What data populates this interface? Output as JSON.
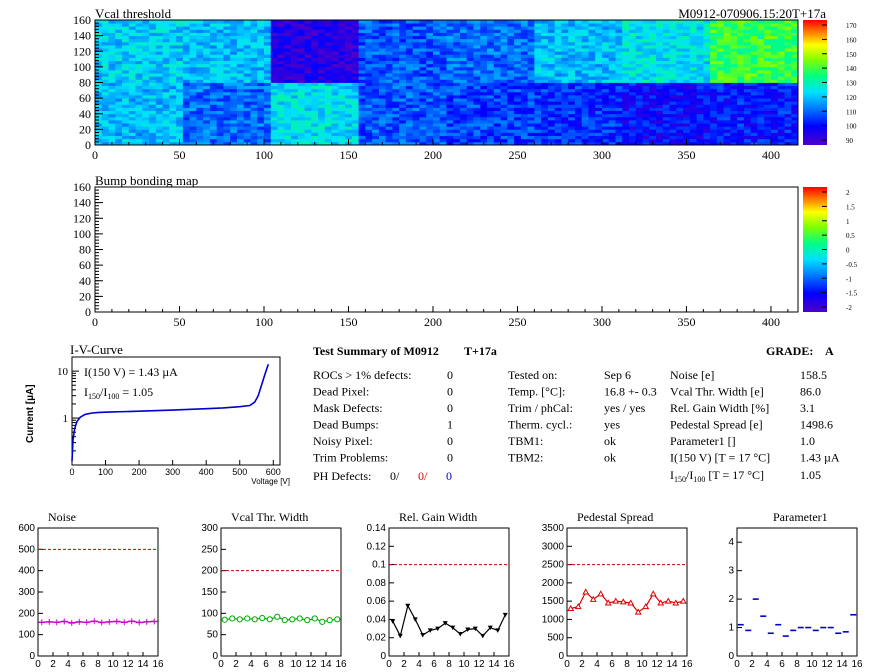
{
  "panels": {
    "vcal": {
      "title": "Vcal threshold",
      "module_id": "M0912-070906.15:20T+17a",
      "y_ticks": [
        "0",
        "20",
        "40",
        "60",
        "80",
        "100",
        "120",
        "140",
        "160"
      ],
      "x_ticks": [
        "0",
        "50",
        "100",
        "150",
        "200",
        "250",
        "300",
        "350",
        "400"
      ],
      "palette_ticks": [
        "90",
        "100",
        "110",
        "120",
        "130",
        "140",
        "150",
        "160",
        "170"
      ]
    },
    "bump": {
      "title": "Bump bonding map",
      "y_ticks": [
        "0",
        "20",
        "40",
        "60",
        "80",
        "100",
        "120",
        "140",
        "160"
      ],
      "x_ticks": [
        "0",
        "50",
        "100",
        "150",
        "200",
        "250",
        "300",
        "350",
        "400"
      ],
      "palette_ticks": [
        "-2",
        "-1.5",
        "-1",
        "-0.5",
        "0",
        "0.5",
        "1",
        "1.5",
        "2"
      ]
    }
  },
  "iv": {
    "title": "I-V-Curve",
    "ylabel": "Current [µA]",
    "xlabel": "Voltage [V]",
    "x_ticks": [
      "0",
      "100",
      "200",
      "300",
      "400",
      "500",
      "600"
    ],
    "y_ticks": [
      "1",
      "10"
    ],
    "note1": "I(150 V) = 1.43 µA",
    "note2_pre": "I",
    "note2_sub1": "150",
    "note2_mid": "/I",
    "note2_sub2": "100",
    "note2_post": " =  1.05"
  },
  "summary": {
    "title": "Test Summary of M0912",
    "tag": "T+17a",
    "grade_label": "GRADE:",
    "grade": "A",
    "rows": [
      {
        "label": "ROCs > 1% defects:",
        "value": "0"
      },
      {
        "label": "Dead Pixel:",
        "value": "0"
      },
      {
        "label": "Mask Defects:",
        "value": "0"
      },
      {
        "label": "Dead Bumps:",
        "value": "1"
      },
      {
        "label": "Noisy Pixel:",
        "value": "0"
      },
      {
        "label": "Trim Problems:",
        "value": "0"
      }
    ],
    "ph_label": "PH Defects:",
    "ph_v1": "0/",
    "ph_v2": "0/",
    "ph_v3": "0",
    "mid_rows": [
      {
        "label": "Tested on:",
        "value": "Sep 6"
      },
      {
        "label": "Temp. [°C]:",
        "value": "16.8 +- 0.3"
      },
      {
        "label": "Trim / phCal:",
        "value": "yes / yes"
      },
      {
        "label": "Therm. cycl.:",
        "value": "yes"
      },
      {
        "label": "TBM1:",
        "value": "ok"
      },
      {
        "label": "TBM2:",
        "value": "ok"
      }
    ],
    "right_rows": [
      {
        "label": "Noise [e]",
        "value": "158.5"
      },
      {
        "label": "Vcal Thr. Width [e]",
        "value": "86.0"
      },
      {
        "label": "Rel. Gain Width [%]",
        "value": "3.1"
      },
      {
        "label": "Pedestal Spread [e]",
        "value": "1498.6"
      },
      {
        "label": "Parameter1 []",
        "value": "1.0"
      },
      {
        "label": "I(150 V) [T = 17 °C]",
        "value": "1.43 µA"
      }
    ],
    "ratio_pre": "I",
    "ratio_sub1": "150",
    "ratio_mid": "/I",
    "ratio_sub2": "100",
    "ratio_post": "  [T = 17 °C]",
    "ratio_value": "1.05"
  },
  "colors": {
    "noise": "#cc00cc",
    "vcal": "#00aa00",
    "gain": "#000000",
    "ped": "#dd0000",
    "par": "#0000cc",
    "limit": "#cc0000",
    "iv": "#0000cc"
  },
  "chart_data": [
    {
      "type": "heatmap",
      "title": "Vcal threshold",
      "xlim": [
        0,
        416
      ],
      "ylim": [
        0,
        160
      ],
      "zlim": [
        90,
        170
      ],
      "chip_means_bottom": [
        120,
        112,
        124,
        110,
        108,
        106,
        102,
        104
      ],
      "chip_means_top": [
        122,
        120,
        96,
        110,
        112,
        120,
        125,
        138
      ]
    },
    {
      "type": "heatmap",
      "title": "Bump bonding map",
      "xlim": [
        0,
        416
      ],
      "ylim": [
        0,
        160
      ],
      "zlim": [
        -2,
        2
      ],
      "values": []
    },
    {
      "type": "line",
      "title": "I-V-Curve",
      "xlabel": "Voltage [V]",
      "ylabel": "Current [µA]",
      "yscale": "log",
      "xlim": [
        0,
        620
      ],
      "ylim": [
        0.1,
        20
      ],
      "x": [
        0,
        3,
        8,
        15,
        25,
        40,
        60,
        80,
        120,
        200,
        300,
        400,
        450,
        500,
        530,
        545,
        555,
        565,
        575,
        585
      ],
      "y": [
        0.12,
        0.35,
        0.6,
        0.85,
        1.05,
        1.2,
        1.28,
        1.32,
        1.35,
        1.4,
        1.48,
        1.58,
        1.65,
        1.75,
        1.85,
        2.2,
        3.0,
        5.0,
        8.5,
        14.0
      ]
    },
    {
      "type": "line",
      "title": "Noise",
      "xlim": [
        0,
        16
      ],
      "ylim": [
        0,
        600
      ],
      "limit": 500,
      "x_ticks": [
        "0",
        "2",
        "4",
        "6",
        "8",
        "10",
        "12",
        "14",
        "16"
      ],
      "y_ticks": [
        "0",
        "100",
        "200",
        "300",
        "400",
        "500",
        "600"
      ],
      "values": [
        158,
        160,
        158,
        162,
        155,
        160,
        158,
        163,
        157,
        160,
        162,
        158,
        163,
        157,
        160,
        162
      ]
    },
    {
      "type": "line",
      "title": "Vcal Thr. Width",
      "xlim": [
        0,
        16
      ],
      "ylim": [
        0,
        300
      ],
      "limit": 200,
      "x_ticks": [
        "0",
        "2",
        "4",
        "6",
        "8",
        "10",
        "12",
        "14",
        "16"
      ],
      "y_ticks": [
        "0",
        "50",
        "100",
        "150",
        "200",
        "250",
        "300"
      ],
      "values": [
        85,
        88,
        86,
        88,
        86,
        89,
        86,
        92,
        84,
        86,
        88,
        84,
        88,
        80,
        84,
        86
      ]
    },
    {
      "type": "line",
      "title": "Rel. Gain Width",
      "xlim": [
        0,
        16
      ],
      "ylim": [
        0,
        0.14
      ],
      "limit": 0.1,
      "x_ticks": [
        "0",
        "2",
        "4",
        "6",
        "8",
        "10",
        "12",
        "14",
        "16"
      ],
      "y_ticks": [
        "0",
        "0.02",
        "0.04",
        "0.06",
        "0.08",
        "0.1",
        "0.12",
        "0.14"
      ],
      "values": [
        0.038,
        0.022,
        0.055,
        0.04,
        0.023,
        0.028,
        0.03,
        0.036,
        0.031,
        0.024,
        0.029,
        0.03,
        0.022,
        0.031,
        0.028,
        0.045
      ]
    },
    {
      "type": "line",
      "title": "Pedestal Spread",
      "xlim": [
        0,
        16
      ],
      "ylim": [
        0,
        3500
      ],
      "limit": 2500,
      "x_ticks": [
        "0",
        "2",
        "4",
        "6",
        "8",
        "10",
        "12",
        "14",
        "16"
      ],
      "y_ticks": [
        "0",
        "500",
        "1000",
        "1500",
        "2000",
        "2500",
        "3000",
        "3500"
      ],
      "values": [
        1300,
        1350,
        1750,
        1550,
        1700,
        1450,
        1500,
        1480,
        1450,
        1200,
        1350,
        1700,
        1450,
        1500,
        1450,
        1500
      ]
    },
    {
      "type": "scatter",
      "title": "Parameter1",
      "xlim": [
        0,
        16
      ],
      "ylim": [
        0,
        4.5
      ],
      "x_ticks": [
        "0",
        "2",
        "4",
        "6",
        "8",
        "10",
        "12",
        "14",
        "16"
      ],
      "y_ticks": [
        "0",
        "1",
        "2",
        "3",
        "4"
      ],
      "values": [
        1.1,
        0.9,
        2.0,
        1.4,
        0.8,
        1.1,
        0.7,
        0.9,
        1.0,
        1.0,
        0.9,
        1.0,
        1.0,
        0.8,
        0.85,
        1.45
      ]
    }
  ]
}
